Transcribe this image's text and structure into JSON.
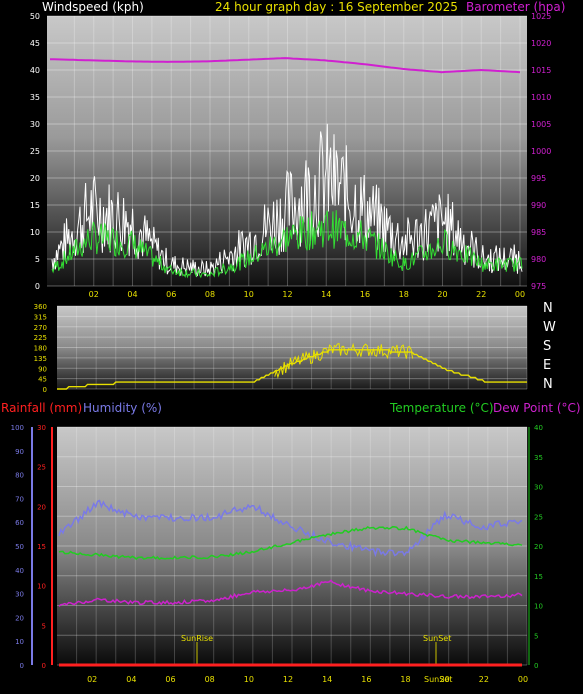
{
  "header": {
    "windspeed_label": "Windspeed (kph)",
    "title": "24 hour graph day : 16 September 2025",
    "barometer_label": "Barometer (hpa)"
  },
  "wind_panel": {
    "left_ticks": [
      "0",
      "5",
      "10",
      "15",
      "20",
      "25",
      "30",
      "35",
      "40",
      "45",
      "50"
    ],
    "right_ticks": [
      "975",
      "980",
      "985",
      "990",
      "995",
      "1000",
      "1005",
      "1010",
      "1015",
      "1020",
      "1025"
    ],
    "x_ticks": [
      "02",
      "04",
      "06",
      "08",
      "10",
      "12",
      "14",
      "16",
      "18",
      "20",
      "22",
      "00"
    ]
  },
  "dir_panel": {
    "left_ticks": [
      "0",
      "45",
      "90",
      "135",
      "180",
      "225",
      "270",
      "315",
      "360"
    ],
    "compass": [
      "N",
      "W",
      "S",
      "E",
      "N"
    ]
  },
  "lower_header": {
    "rain_label": "Rainfall (mm)",
    "humidity_label": "Humidity (%)",
    "temp_label": "Temperature (°C)",
    "dew_label": "Dew Point (°C)"
  },
  "lower_panel": {
    "humidity_ticks": [
      "0",
      "10",
      "20",
      "30",
      "40",
      "50",
      "60",
      "70",
      "80",
      "90",
      "100"
    ],
    "rain_ticks": [
      "0",
      "5",
      "10",
      "15",
      "20",
      "25",
      "30"
    ],
    "temp_ticks": [
      "0",
      "5",
      "10",
      "15",
      "20",
      "25",
      "30",
      "35",
      "40"
    ],
    "x_ticks": [
      "02",
      "04",
      "06",
      "08",
      "10",
      "12",
      "14",
      "16",
      "18",
      "20",
      "22",
      "00"
    ],
    "sunrise": "SunRise",
    "sunset": "SunSet",
    "sunset_bottom": "SunSet"
  },
  "colors": {
    "wind_gust": "#ffffff",
    "wind_avg": "#33dd33",
    "barometer": "#d020d0",
    "direction": "#e8e000",
    "humidity": "#7a7ae6",
    "temperature": "#22cc22",
    "dewpoint": "#cc22cc",
    "rainfall": "#ff2020"
  },
  "chart_data": [
    {
      "type": "line",
      "title": "24 hour graph day : 16 September 2025",
      "ylabel": "Windspeed (kph)",
      "y2label": "Barometer (hpa)",
      "ylim": [
        0,
        50
      ],
      "y2lim": [
        975,
        1025
      ],
      "x": [
        "00",
        "02",
        "04",
        "06",
        "08",
        "10",
        "12",
        "14",
        "16",
        "18",
        "20",
        "22",
        "00"
      ],
      "series": [
        {
          "values": [
            5,
            14,
            12,
            4,
            3,
            8,
            14,
            20,
            14,
            8,
            12,
            5,
            5
          ]
        },
        {
          "values": [
            3,
            9,
            8,
            3,
            2,
            5,
            9,
            11,
            9,
            4,
            8,
            4,
            4
          ]
        },
        {
          "values": [
            1017,
            1016.8,
            1016.6,
            1016.5,
            1016.6,
            1016.9,
            1017.2,
            1016.8,
            1016.1,
            1015.2,
            1014.6,
            1015.0,
            1014.6
          ]
        }
      ]
    },
    {
      "type": "line",
      "ylim": [
        0,
        360
      ],
      "x": [
        "00",
        "02",
        "04",
        "06",
        "08",
        "10",
        "12",
        "14",
        "16",
        "18",
        "20",
        "22",
        "00"
      ],
      "series": [
        {
          "values": [
            0,
            20,
            30,
            30,
            30,
            30,
            110,
            170,
            170,
            160,
            80,
            30,
            30
          ]
        }
      ]
    },
    {
      "type": "line",
      "ylabel": "Humidity (%)",
      "y2label": "Temperature (°C)",
      "ylim": [
        0,
        100
      ],
      "y2lim": [
        0,
        40
      ],
      "x": [
        "00",
        "02",
        "04",
        "06",
        "08",
        "10",
        "12",
        "14",
        "16",
        "18",
        "20",
        "22",
        "00"
      ],
      "series": [
        {
          "name": "Humidity (%)",
          "values": [
            55,
            68,
            62,
            62,
            62,
            67,
            58,
            52,
            48,
            47,
            63,
            58,
            61
          ]
        },
        {
          "name": "Temperature (°C)",
          "values": [
            19,
            18.5,
            18,
            18,
            18.2,
            19,
            20.5,
            22,
            23,
            23,
            21,
            20.5,
            20.2
          ]
        },
        {
          "name": "Dew Point (°C)",
          "values": [
            10,
            11,
            10.5,
            10.5,
            10.8,
            12.3,
            12.5,
            14,
            12.5,
            12,
            11.5,
            11.5,
            11.8
          ]
        },
        {
          "name": "Rainfall (mm)",
          "values": [
            0,
            0,
            0,
            0,
            0,
            0,
            0,
            0,
            0,
            0,
            0,
            0,
            0
          ]
        }
      ]
    }
  ]
}
